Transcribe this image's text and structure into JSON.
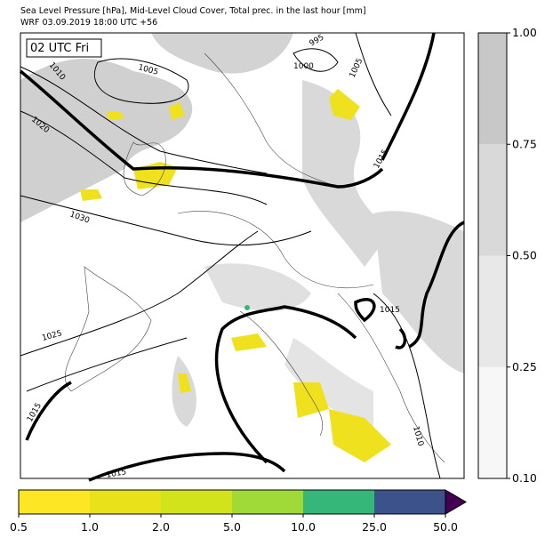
{
  "header": {
    "line1": "Sea Level Pressure [hPa], Mid-Level Cloud Cover, Total prec. in the last hour [mm]",
    "line2": "WRF 03.09.2019 18:00 UTC +56"
  },
  "time_label": "02 UTC Fri",
  "isobar_labels": [
    "995",
    "1000",
    "1005",
    "1005",
    "1010",
    "1020",
    "1030",
    "1025",
    "1015",
    "1015",
    "1015",
    "1010",
    "1015"
  ],
  "cloud_colorbar": {
    "ticks": [
      "0.10",
      "0.25",
      "0.50",
      "0.75",
      "1.00"
    ],
    "colors": [
      "#f7f7f7",
      "#e8e8e8",
      "#d9d9d9",
      "#c8c8c8"
    ]
  },
  "precip_colorbar": {
    "ticks": [
      "0.5",
      "1.0",
      "2.0",
      "5.0",
      "10.0",
      "25.0",
      "50.0"
    ],
    "colors": [
      "#fde725",
      "#e9e21b",
      "#d2e21b",
      "#a0da39",
      "#35b779",
      "#3b528b"
    ],
    "extend_color": "#440154"
  }
}
